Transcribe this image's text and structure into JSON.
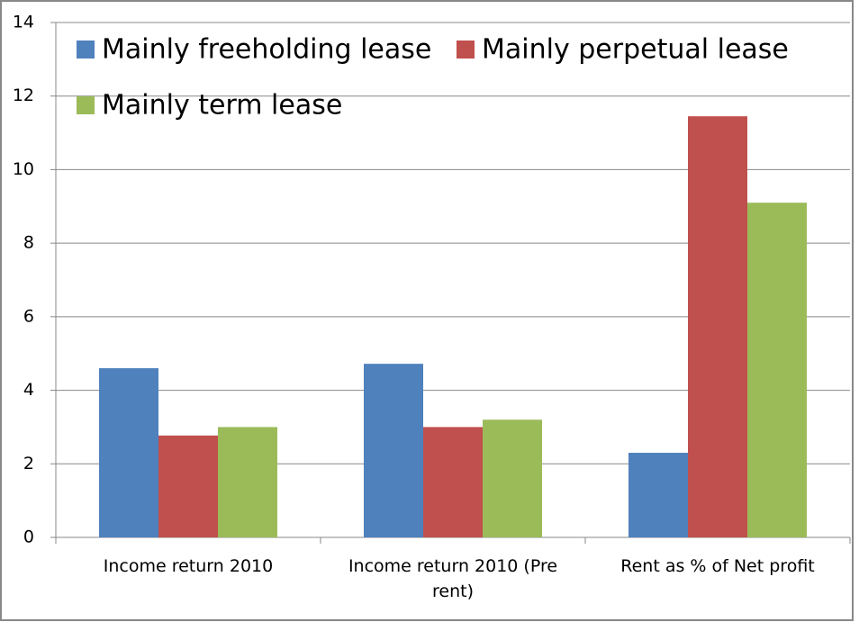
{
  "chart_data": {
    "type": "bar",
    "categories": [
      "Income return 2010",
      "Income return 2010 (Pre rent)",
      "Rent as % of Net profit"
    ],
    "series": [
      {
        "name": "Mainly freeholding lease",
        "color": "#4f81bd",
        "values": [
          4.6,
          4.72,
          2.3
        ]
      },
      {
        "name": "Mainly perpetual lease",
        "color": "#c0504d",
        "values": [
          2.77,
          3.0,
          11.45
        ]
      },
      {
        "name": "Mainly term lease",
        "color": "#9bbb59",
        "values": [
          3.0,
          3.2,
          9.1
        ]
      }
    ],
    "ylim": [
      0,
      14
    ],
    "yticks": [
      0,
      2,
      4,
      6,
      8,
      10,
      12,
      14
    ],
    "grid": true
  }
}
